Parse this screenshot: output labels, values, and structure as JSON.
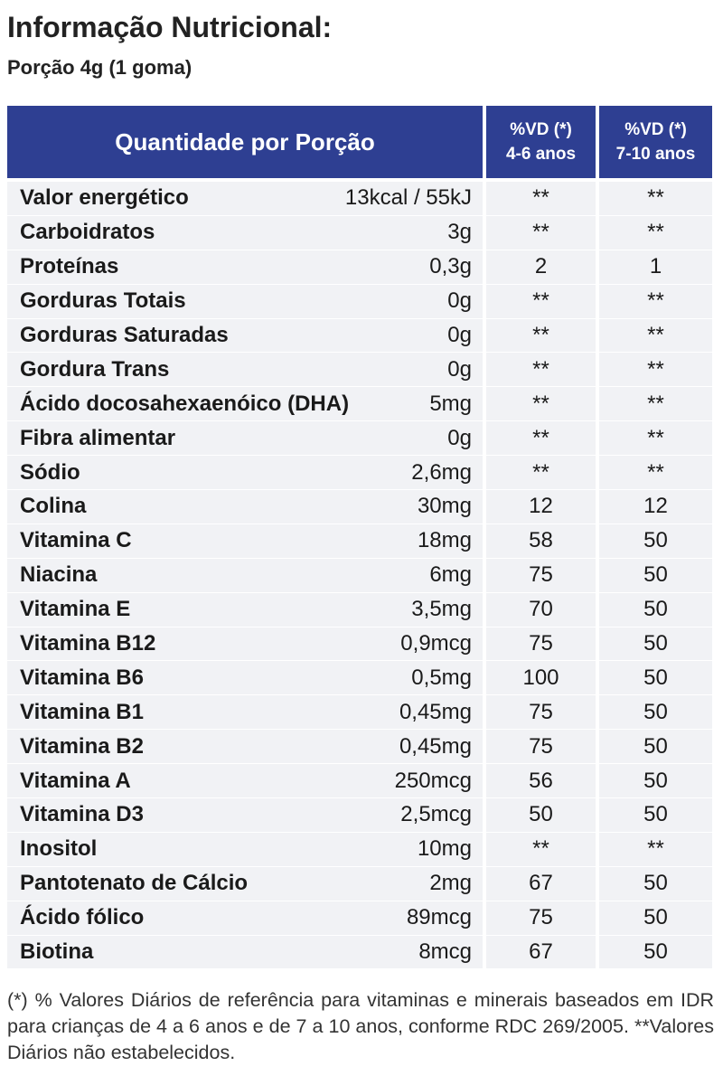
{
  "header": {
    "title": "Informação Nutricional:",
    "portion": "Porção 4g (1 goma)"
  },
  "table": {
    "col_main": "Quantidade por Porção",
    "col_vd1_line1": "%VD (*)",
    "col_vd1_line2": "4-6 anos",
    "col_vd2_line1": "%VD (*)",
    "col_vd2_line2": "7-10 anos",
    "rows": [
      {
        "name": "Valor energético",
        "amount": "13kcal / 55kJ",
        "vd1": "**",
        "vd2": "**"
      },
      {
        "name": "Carboidratos",
        "amount": "3g",
        "vd1": "**",
        "vd2": "**"
      },
      {
        "name": "Proteínas",
        "amount": "0,3g",
        "vd1": "2",
        "vd2": "1"
      },
      {
        "name": "Gorduras Totais",
        "amount": "0g",
        "vd1": "**",
        "vd2": "**"
      },
      {
        "name": "Gorduras Saturadas",
        "amount": "0g",
        "vd1": "**",
        "vd2": "**"
      },
      {
        "name": "Gordura Trans",
        "amount": "0g",
        "vd1": "**",
        "vd2": "**"
      },
      {
        "name": "Ácido docosahexaenóico (DHA)",
        "amount": "5mg",
        "vd1": "**",
        "vd2": "**"
      },
      {
        "name": "Fibra alimentar",
        "amount": "0g",
        "vd1": "**",
        "vd2": "**"
      },
      {
        "name": "Sódio",
        "amount": "2,6mg",
        "vd1": "**",
        "vd2": "**"
      },
      {
        "name": "Colina",
        "amount": "30mg",
        "vd1": "12",
        "vd2": "12"
      },
      {
        "name": "Vitamina C",
        "amount": "18mg",
        "vd1": "58",
        "vd2": "50"
      },
      {
        "name": "Niacina",
        "amount": "6mg",
        "vd1": "75",
        "vd2": "50"
      },
      {
        "name": "Vitamina E",
        "amount": "3,5mg",
        "vd1": "70",
        "vd2": "50"
      },
      {
        "name": "Vitamina B12",
        "amount": "0,9mcg",
        "vd1": "75",
        "vd2": "50"
      },
      {
        "name": "Vitamina B6",
        "amount": "0,5mg",
        "vd1": "100",
        "vd2": "50"
      },
      {
        "name": "Vitamina B1",
        "amount": "0,45mg",
        "vd1": "75",
        "vd2": "50"
      },
      {
        "name": "Vitamina B2",
        "amount": "0,45mg",
        "vd1": "75",
        "vd2": "50"
      },
      {
        "name": "Vitamina A",
        "amount": "250mcg",
        "vd1": "56",
        "vd2": "50"
      },
      {
        "name": "Vitamina D3",
        "amount": "2,5mcg",
        "vd1": "50",
        "vd2": "50"
      },
      {
        "name": "Inositol",
        "amount": "10mg",
        "vd1": "**",
        "vd2": "**"
      },
      {
        "name": "Pantotenato de Cálcio",
        "amount": "2mg",
        "vd1": "67",
        "vd2": "50"
      },
      {
        "name": "Ácido fólico",
        "amount": "89mcg",
        "vd1": "75",
        "vd2": "50"
      },
      {
        "name": "Biotina",
        "amount": "8mcg",
        "vd1": "67",
        "vd2": "50"
      }
    ]
  },
  "footnote": "(*) % Valores Diários de referência para vitaminas e minerais baseados em IDR para crianças de 4 a 6 anos e de 7 a 10 anos, conforme RDC 269/2005. **Valores Diários não estabelecidos.",
  "colors": {
    "header_bg": "#2e3f92",
    "row_bg": "#f1f2f5"
  }
}
